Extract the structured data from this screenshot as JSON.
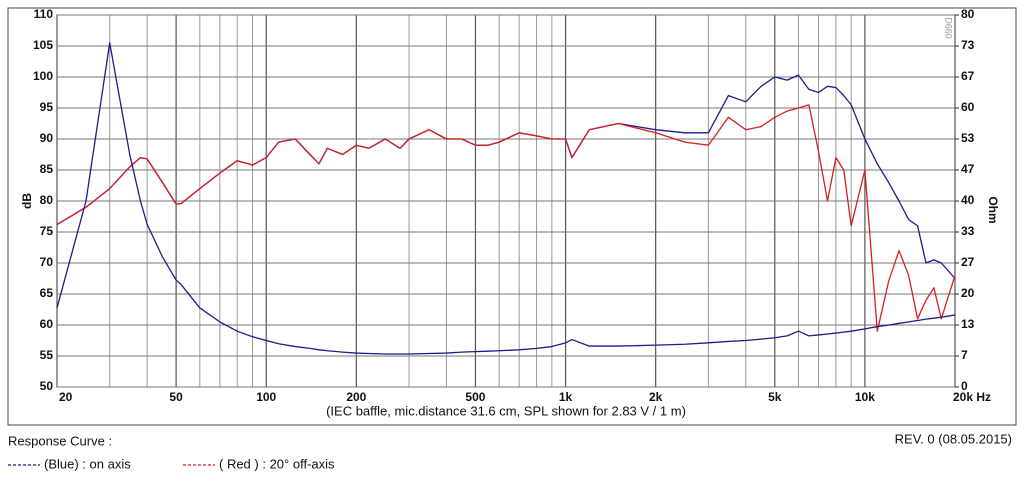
{
  "chart_data": {
    "type": "line",
    "x_scale": "log",
    "xlabel": "(IEC baffle, mic.distance 31.6 cm, SPL shown for 2.83 V / 1 m)",
    "ylabel": "dB",
    "y2label": "Ohm",
    "legend_title": "Response Curve :",
    "revision": "REV. 0 (08.05.2015)",
    "watermark": "D660",
    "grid": true,
    "xlim": [
      20,
      20000
    ],
    "xticks": [
      20,
      50,
      100,
      200,
      500,
      {
        "value": 1000,
        "label": "1k"
      },
      {
        "value": 2000,
        "label": "2k"
      },
      {
        "value": 5000,
        "label": "5k"
      },
      {
        "value": 10000,
        "label": "10k"
      },
      {
        "value": 20000,
        "label": "20k Hz"
      }
    ],
    "xminor": [
      30,
      40,
      60,
      70,
      80,
      90,
      300,
      400,
      600,
      700,
      800,
      900,
      3000,
      4000,
      6000,
      7000,
      8000,
      9000
    ],
    "ylim": [
      50,
      110
    ],
    "yticks": [
      50,
      55,
      60,
      65,
      70,
      75,
      80,
      85,
      90,
      95,
      100,
      105,
      110
    ],
    "y2lim": [
      0,
      80
    ],
    "y2ticks": [
      0,
      {
        "value": 6.667,
        "label": "7"
      },
      {
        "value": 13.333,
        "label": "13"
      },
      20,
      {
        "value": 26.667,
        "label": "27"
      },
      {
        "value": 33.333,
        "label": "33"
      },
      40,
      {
        "value": 46.667,
        "label": "47"
      },
      {
        "value": 53.333,
        "label": "53"
      },
      60,
      {
        "value": 66.667,
        "label": "67"
      },
      {
        "value": 73.333,
        "label": "73"
      },
      80
    ],
    "x": [
      20,
      25,
      30,
      35,
      38,
      40,
      45,
      50,
      52,
      60,
      70,
      80,
      90,
      100,
      110,
      125,
      140,
      150,
      160,
      180,
      200,
      220,
      250,
      280,
      300,
      350,
      400,
      450,
      500,
      550,
      600,
      700,
      800,
      900,
      1000,
      1050,
      1200,
      1500,
      2000,
      2500,
      3000,
      3500,
      4000,
      4500,
      5000,
      5500,
      6000,
      6500,
      7000,
      7500,
      8000,
      8500,
      9000,
      10000,
      11000,
      12000,
      13000,
      14000,
      15000,
      16000,
      17000,
      18000,
      20000
    ],
    "series": [
      {
        "name": "(Blue) : on axis",
        "color": "#1c1c8a",
        "values": [
          76.2,
          79,
          82,
          85.5,
          87,
          86.8,
          83,
          79.5,
          79.6,
          82,
          84.5,
          86.5,
          85.8,
          87,
          89.5,
          90,
          87.5,
          86,
          88.5,
          87.5,
          89,
          88.5,
          90,
          88.5,
          90,
          91.5,
          90,
          90,
          89,
          89,
          89.5,
          91,
          90.5,
          90,
          90,
          87,
          91.5,
          92.5,
          91.5,
          91,
          91,
          97,
          96,
          98.5,
          100,
          99.5,
          100.3,
          98,
          97.5,
          98.5,
          98.3,
          97,
          95.5,
          90,
          86,
          83,
          80,
          77,
          76,
          70,
          70.5,
          70,
          67.5
        ]
      },
      {
        "name": "( Red ) : 20° off-axis",
        "color": "#d42020",
        "values": [
          76.2,
          79,
          82,
          85.5,
          87,
          86.8,
          83,
          79.5,
          79.6,
          82,
          84.5,
          86.5,
          85.8,
          87,
          89.5,
          90,
          87.5,
          86,
          88.5,
          87.5,
          89,
          88.5,
          90,
          88.5,
          90,
          91.5,
          90,
          90,
          89,
          89,
          89.5,
          91,
          90.5,
          90,
          90,
          87,
          91.5,
          92.5,
          91,
          89.5,
          89,
          93.5,
          91.5,
          92,
          93.5,
          94.5,
          95,
          95.5,
          88,
          80,
          87,
          85,
          76,
          85,
          59,
          67,
          72,
          68,
          61,
          64,
          66,
          61,
          68
        ]
      },
      {
        "color": "#1c1c8a",
        "axis": "y2",
        "values": [
          17,
          40,
          74,
          50,
          40,
          35,
          28,
          23,
          22,
          17,
          14,
          12,
          10.8,
          10,
          9.3,
          8.7,
          8.3,
          8,
          7.8,
          7.5,
          7.3,
          7.2,
          7.1,
          7.1,
          7.1,
          7.2,
          7.3,
          7.5,
          7.6,
          7.7,
          7.8,
          8,
          8.3,
          8.7,
          9.5,
          10.2,
          8.8,
          8.8,
          9,
          9.2,
          9.5,
          9.8,
          10,
          10.3,
          10.6,
          11,
          12,
          11,
          11.2,
          11.4,
          11.6,
          11.8,
          12,
          12.5,
          13,
          13.3,
          13.7,
          14,
          14.3,
          14.6,
          14.8,
          15,
          15.5
        ]
      }
    ]
  }
}
